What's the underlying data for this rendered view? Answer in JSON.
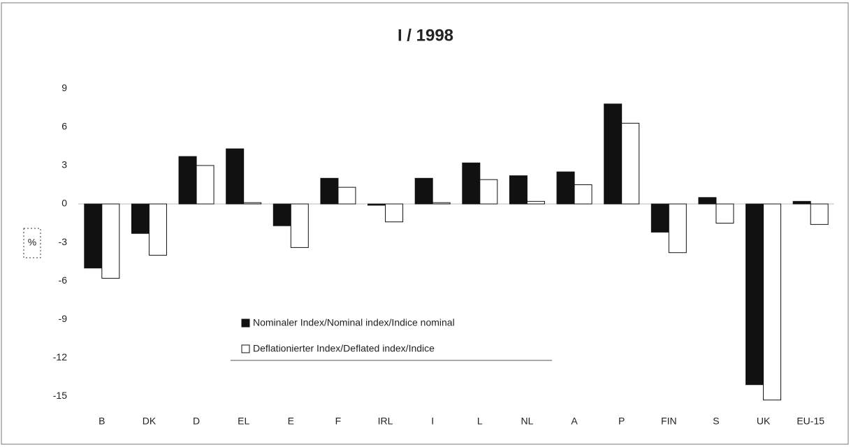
{
  "chart_data": {
    "type": "bar",
    "title": "I / 1998",
    "y_label": "%",
    "categories": [
      "B",
      "DK",
      "D",
      "EL",
      "E",
      "F",
      "IRL",
      "I",
      "L",
      "NL",
      "A",
      "P",
      "FIN",
      "S",
      "UK",
      "EU-15"
    ],
    "series": [
      {
        "name": "Nominaler Index/Nominal index/Indice nominal",
        "color": "#111111",
        "values": [
          -5.0,
          -2.3,
          3.7,
          4.3,
          -1.7,
          2.0,
          -0.1,
          2.0,
          3.2,
          2.2,
          2.5,
          7.8,
          -2.2,
          0.5,
          -14.1,
          0.2
        ]
      },
      {
        "name": "Deflationierter Index/Deflated index/Indice",
        "color": "#ffffff",
        "values": [
          -5.8,
          -4.0,
          3.0,
          0.1,
          -3.4,
          1.3,
          -1.4,
          0.1,
          1.9,
          0.2,
          1.5,
          6.3,
          -3.8,
          -1.5,
          -15.3,
          -1.6
        ]
      }
    ],
    "ylim": [
      -16,
      10
    ],
    "yticks": [
      9,
      6,
      3,
      0,
      -3,
      -6,
      -9,
      -12,
      -15
    ],
    "grid": false
  }
}
